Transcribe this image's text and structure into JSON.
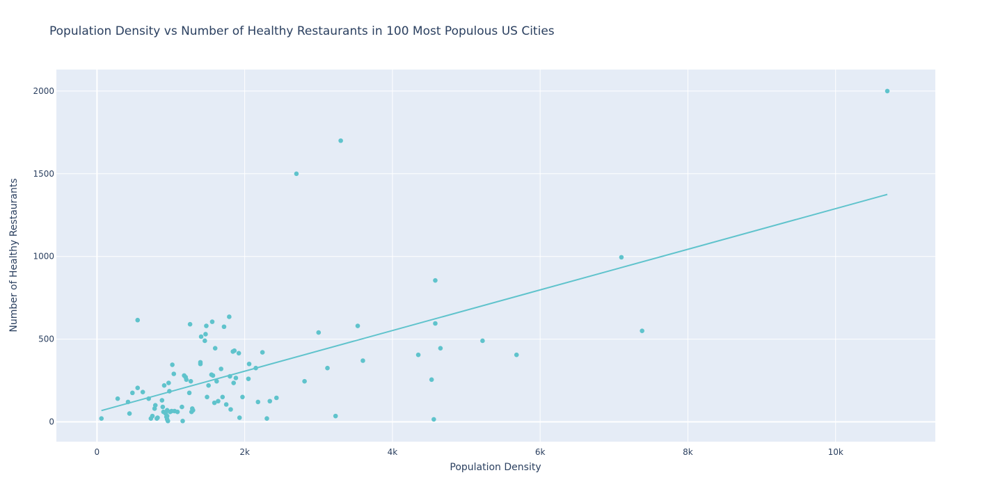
{
  "chart_data": {
    "type": "scatter",
    "title": "Population Density vs Number of Healthy Restaurants in 100 Most Populous US Cities",
    "xlabel": "Population Density",
    "ylabel": "Number of Healthy Restaurants",
    "xlim": [
      -550,
      11350
    ],
    "ylim": [
      -120,
      2130
    ],
    "x_ticks": [
      0,
      2000,
      4000,
      6000,
      8000,
      10000
    ],
    "x_tick_labels": [
      "0",
      "2k",
      "4k",
      "6k",
      "8k",
      "10k"
    ],
    "y_ticks": [
      0,
      500,
      1000,
      1500,
      2000
    ],
    "y_tick_labels": [
      "0",
      "500",
      "1000",
      "1500",
      "2000"
    ],
    "grid": true,
    "colors": {
      "marker": "#5fc3cc",
      "trendline": "#5fc3cc",
      "plot_bg": "#e5ecf6",
      "grid": "#ffffff",
      "text": "#2a3f5f"
    },
    "series": [
      {
        "mode": "markers",
        "x": [
          10700,
          3300,
          2700,
          7100,
          7380,
          4580,
          4580,
          4650,
          5220,
          5680,
          3530,
          3600,
          3000,
          3120,
          2810,
          2430,
          2340,
          2300,
          2240,
          2180,
          2150,
          2060,
          2050,
          1970,
          1930,
          1920,
          1880,
          1860,
          1850,
          1840,
          1810,
          1800,
          1790,
          1750,
          1720,
          1700,
          1680,
          1640,
          1620,
          1600,
          1590,
          1570,
          1560,
          1550,
          1510,
          1490,
          1480,
          1470,
          1460,
          1410,
          1400,
          1400,
          1300,
          1290,
          1280,
          1270,
          1260,
          1250,
          1210,
          1200,
          1160,
          1150,
          1180,
          1090,
          1050,
          1040,
          1020,
          1010,
          990,
          980,
          970,
          960,
          950,
          950,
          940,
          930,
          910,
          900,
          890,
          880,
          820,
          810,
          790,
          780,
          750,
          730,
          700,
          620,
          550,
          550,
          480,
          440,
          420,
          280,
          60,
          4350,
          4530,
          3230,
          4560,
          950
        ],
        "y": [
          2000,
          1700,
          1500,
          995,
          550,
          855,
          595,
          445,
          490,
          405,
          580,
          370,
          540,
          325,
          245,
          145,
          125,
          20,
          420,
          120,
          325,
          350,
          260,
          150,
          25,
          415,
          265,
          430,
          235,
          425,
          75,
          275,
          635,
          105,
          575,
          150,
          320,
          125,
          245,
          445,
          115,
          280,
          605,
          285,
          220,
          150,
          580,
          530,
          490,
          515,
          350,
          360,
          70,
          80,
          60,
          245,
          590,
          175,
          255,
          270,
          5,
          90,
          280,
          60,
          65,
          290,
          345,
          65,
          60,
          185,
          235,
          5,
          15,
          70,
          30,
          50,
          220,
          60,
          90,
          130,
          25,
          20,
          100,
          80,
          35,
          20,
          140,
          180,
          615,
          205,
          175,
          50,
          120,
          140,
          20,
          405,
          255,
          35,
          15,
          35
        ]
      },
      {
        "mode": "lines",
        "x": [
          60,
          10700
        ],
        "y": [
          68,
          1375
        ]
      }
    ]
  }
}
